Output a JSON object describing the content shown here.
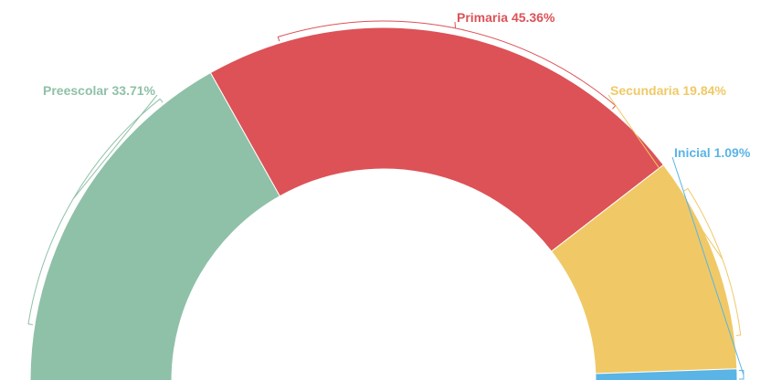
{
  "chart_data": {
    "type": "semi-donut",
    "categories": [
      "Preescolar",
      "Primaria",
      "Secundaria",
      "Inicial"
    ],
    "values": [
      33.71,
      45.36,
      19.84,
      1.09
    ],
    "value_labels": [
      "33.71%",
      "45.36%",
      "19.84%",
      "1.09%"
    ],
    "colors": [
      "#8fc1a8",
      "#dc5257",
      "#f0c966",
      "#5ab4e5"
    ]
  }
}
